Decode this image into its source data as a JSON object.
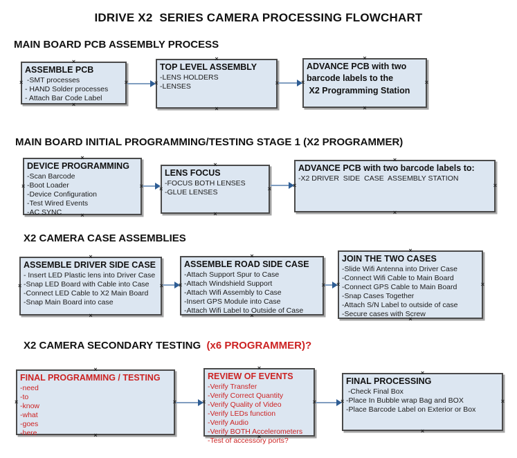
{
  "title": "IDRIVE X2  SERIES CAMERA PROCESSING FLOWCHART",
  "glyphs": {
    "anchor": "×"
  },
  "colors": {
    "box_fill": "#dce6f1",
    "box_border": "#4a4a4a",
    "arrow_line": "#7f9dc0",
    "arrow_head": "#2e5d94",
    "red_text": "#cc2222",
    "black_text": "#1a1a1a"
  },
  "sections": [
    {
      "header": "MAIN BOARD PCB ASSEMBLY PROCESS",
      "header_suffix": "",
      "boxes": [
        {
          "title": "ASSEMBLE PCB",
          "lines": [
            " -SMT processes",
            "- HAND Solder processes",
            "- Attach Bar Code Label"
          ]
        },
        {
          "title": "TOP LEVEL ASSEMBLY",
          "lines": [
            "-LENS HOLDERS",
            "-LENSES"
          ]
        },
        {
          "title": "ADVANCE PCB with two\nbarcode labels to the\n X2 Programming Station",
          "lines": []
        }
      ]
    },
    {
      "header": "MAIN BOARD INITIAL PROGRAMMING/TESTING STAGE 1 (X2 PROGRAMMER)",
      "header_suffix": "",
      "boxes": [
        {
          "title": "DEVICE PROGRAMMING",
          "lines": [
            "-Scan Barcode",
            "-Boot Loader",
            "-Device Configuration",
            "-Test Wired Events",
            "-AC SYNC"
          ]
        },
        {
          "title": "LENS FOCUS",
          "lines": [
            "-FOCUS BOTH LENSES",
            "-GLUE LENSES"
          ]
        },
        {
          "title": "ADVANCE PCB with two barcode labels to:",
          "lines": [
            "-X2 DRIVER  SIDE  CASE  ASSEMBLY STATION"
          ]
        }
      ]
    },
    {
      "header": "X2 CAMERA CASE ASSEMBLIES",
      "header_suffix": "",
      "boxes": [
        {
          "title": "ASSEMBLE DRIVER SIDE CASE",
          "lines": [
            "- Insert LED Plastic lens into Driver Case",
            "-Snap LED Board with Cable into Case",
            "-Connect LED Cable to X2 Main Board",
            "-Snap Main Board into case"
          ]
        },
        {
          "title": "ASSEMBLE ROAD SIDE CASE",
          "lines": [
            "-Attach Support Spur to Case",
            "-Attach Windshield Support",
            "-Attach Wifi Assembly to Case",
            "-Insert GPS Module into Case",
            "-Attach Wifi Label to Outside of Case"
          ]
        },
        {
          "title": "JOIN THE TWO CASES",
          "lines": [
            "-Slide Wifi Antenna into Driver Case",
            "-Connect Wifi Cable to Main Board",
            "-Connect GPS Cable to Main Board",
            "-Snap Cases Together",
            "-Attach S/N Label to outside of case",
            "-Secure cases with Screw"
          ]
        }
      ]
    },
    {
      "header": "X2 CAMERA SECONDARY TESTING ",
      "header_suffix": " (x6 PROGRAMMER)?",
      "boxes": [
        {
          "title": "FINAL PROGRAMMING / TESTING",
          "lines": [
            "-need",
            "-to",
            "-know",
            "-what",
            "-goes",
            "-here"
          ]
        },
        {
          "title": "REVIEW OF EVENTS",
          "lines": [
            "-Verify Transfer",
            "-Verify Correct Quantity",
            "-Verify Quality of Video",
            "-Verify LEDs function",
            "-Verify Audio",
            "-Verify BOTH Accelerometers",
            "-Test of accessory ports?"
          ]
        },
        {
          "title": "FINAL PROCESSING",
          "lines": [
            " -Check Final Box",
            "-Place In Bubble wrap Bag and BOX",
            "-Place Barcode Label on Exterior or Box"
          ]
        }
      ]
    }
  ]
}
